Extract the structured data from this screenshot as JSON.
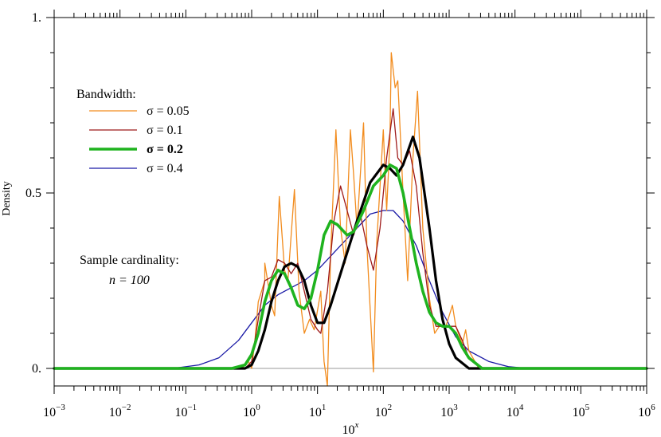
{
  "chart_data": {
    "type": "line",
    "xscale": "log",
    "x_exponent_range": [
      -3,
      6
    ],
    "xlim": [
      0.001,
      1000000
    ],
    "ylim": [
      -0.05,
      1.0
    ],
    "xlabel_base": "10",
    "xlabel_exp": "x",
    "ylabel": "Density",
    "yticks": [
      {
        "value": 0.0,
        "label": "0."
      },
      {
        "value": 0.5,
        "label": "0.5"
      },
      {
        "value": 1.0,
        "label": "1."
      }
    ],
    "xticks": [
      {
        "exp": -3,
        "base": "10",
        "sup": "−3"
      },
      {
        "exp": -2,
        "base": "10",
        "sup": "−2"
      },
      {
        "exp": -1,
        "base": "10",
        "sup": "−1"
      },
      {
        "exp": 0,
        "base": "10",
        "sup": "0"
      },
      {
        "exp": 1,
        "base": "10",
        "sup": "1"
      },
      {
        "exp": 2,
        "base": "10",
        "sup": "2"
      },
      {
        "exp": 3,
        "base": "10",
        "sup": "3"
      },
      {
        "exp": 4,
        "base": "10",
        "sup": "4"
      },
      {
        "exp": 5,
        "base": "10",
        "sup": "5"
      },
      {
        "exp": 6,
        "base": "10",
        "sup": "6"
      }
    ],
    "legend": {
      "title": "Bandwidth:",
      "entries": [
        {
          "label": "σ = 0.05",
          "color": "#f28c1e",
          "width": 1.3,
          "bold": false
        },
        {
          "label": "σ = 0.1",
          "color": "#9e1a1a",
          "width": 1.3,
          "bold": false
        },
        {
          "label": "σ = 0.2",
          "color": "#1fb31f",
          "width": 3.6,
          "bold": true
        },
        {
          "label": "σ = 0.4",
          "color": "#1a1aa6",
          "width": 1.3,
          "bold": false
        }
      ]
    },
    "annotation": {
      "line1": "Sample cardinality:",
      "line2": "n = 100"
    },
    "series": [
      {
        "color": "#000000",
        "width": 3.2,
        "points": [
          [
            -3.0,
            0.0
          ],
          [
            -0.1,
            0.0
          ],
          [
            0.0,
            0.01
          ],
          [
            0.1,
            0.05
          ],
          [
            0.2,
            0.11
          ],
          [
            0.3,
            0.19
          ],
          [
            0.4,
            0.25
          ],
          [
            0.5,
            0.29
          ],
          [
            0.6,
            0.3
          ],
          [
            0.7,
            0.29
          ],
          [
            0.8,
            0.25
          ],
          [
            0.9,
            0.18
          ],
          [
            1.0,
            0.13
          ],
          [
            1.1,
            0.13
          ],
          [
            1.2,
            0.18
          ],
          [
            1.4,
            0.3
          ],
          [
            1.6,
            0.42
          ],
          [
            1.8,
            0.53
          ],
          [
            2.0,
            0.58
          ],
          [
            2.1,
            0.57
          ],
          [
            2.2,
            0.55
          ],
          [
            2.3,
            0.58
          ],
          [
            2.45,
            0.66
          ],
          [
            2.55,
            0.6
          ],
          [
            2.7,
            0.4
          ],
          [
            2.8,
            0.25
          ],
          [
            2.9,
            0.14
          ],
          [
            3.0,
            0.07
          ],
          [
            3.1,
            0.03
          ],
          [
            3.3,
            0.0
          ],
          [
            6.0,
            0.0
          ]
        ]
      },
      {
        "color": "#f28c1e",
        "width": 1.3,
        "points": [
          [
            -3.0,
            0.0
          ],
          [
            -0.15,
            0.0
          ],
          [
            -0.05,
            0.02
          ],
          [
            0.0,
            0.0
          ],
          [
            0.05,
            0.08
          ],
          [
            0.1,
            0.19
          ],
          [
            0.2,
            0.25
          ],
          [
            0.2,
            0.3
          ],
          [
            0.25,
            0.24
          ],
          [
            0.3,
            0.18
          ],
          [
            0.35,
            0.15
          ],
          [
            0.42,
            0.49
          ],
          [
            0.5,
            0.28
          ],
          [
            0.55,
            0.25
          ],
          [
            0.65,
            0.51
          ],
          [
            0.72,
            0.22
          ],
          [
            0.8,
            0.1
          ],
          [
            0.88,
            0.14
          ],
          [
            0.95,
            0.11
          ],
          [
            1.05,
            0.22
          ],
          [
            1.1,
            0.02
          ],
          [
            1.15,
            -0.05
          ],
          [
            1.2,
            0.33
          ],
          [
            1.28,
            0.68
          ],
          [
            1.35,
            0.4
          ],
          [
            1.42,
            0.3
          ],
          [
            1.5,
            0.68
          ],
          [
            1.55,
            0.55
          ],
          [
            1.6,
            0.4
          ],
          [
            1.7,
            0.7
          ],
          [
            1.75,
            0.35
          ],
          [
            1.85,
            -0.01
          ],
          [
            1.9,
            0.36
          ],
          [
            2.0,
            0.68
          ],
          [
            2.05,
            0.45
          ],
          [
            2.1,
            0.65
          ],
          [
            2.12,
            0.9
          ],
          [
            2.18,
            0.8
          ],
          [
            2.22,
            0.82
          ],
          [
            2.25,
            0.7
          ],
          [
            2.3,
            0.5
          ],
          [
            2.37,
            0.25
          ],
          [
            2.45,
            0.6
          ],
          [
            2.52,
            0.79
          ],
          [
            2.6,
            0.4
          ],
          [
            2.7,
            0.2
          ],
          [
            2.78,
            0.1
          ],
          [
            2.85,
            0.12
          ],
          [
            2.95,
            0.12
          ],
          [
            3.05,
            0.18
          ],
          [
            3.1,
            0.12
          ],
          [
            3.2,
            0.07
          ],
          [
            3.25,
            0.11
          ],
          [
            3.3,
            0.05
          ],
          [
            3.45,
            0.0
          ],
          [
            6.0,
            0.0
          ]
        ]
      },
      {
        "color": "#9e1a1a",
        "width": 1.3,
        "points": [
          [
            -3.0,
            0.0
          ],
          [
            -0.1,
            0.0
          ],
          [
            0.0,
            0.02
          ],
          [
            0.1,
            0.14
          ],
          [
            0.2,
            0.25
          ],
          [
            0.3,
            0.26
          ],
          [
            0.4,
            0.31
          ],
          [
            0.5,
            0.3
          ],
          [
            0.6,
            0.27
          ],
          [
            0.7,
            0.3
          ],
          [
            0.8,
            0.22
          ],
          [
            0.9,
            0.14
          ],
          [
            1.0,
            0.11
          ],
          [
            1.05,
            0.1
          ],
          [
            1.15,
            0.22
          ],
          [
            1.25,
            0.42
          ],
          [
            1.35,
            0.52
          ],
          [
            1.45,
            0.45
          ],
          [
            1.55,
            0.38
          ],
          [
            1.65,
            0.44
          ],
          [
            1.75,
            0.35
          ],
          [
            1.85,
            0.28
          ],
          [
            1.95,
            0.4
          ],
          [
            2.05,
            0.6
          ],
          [
            2.15,
            0.74
          ],
          [
            2.22,
            0.6
          ],
          [
            2.3,
            0.58
          ],
          [
            2.4,
            0.62
          ],
          [
            2.5,
            0.52
          ],
          [
            2.6,
            0.33
          ],
          [
            2.7,
            0.18
          ],
          [
            2.8,
            0.12
          ],
          [
            2.9,
            0.12
          ],
          [
            3.0,
            0.12
          ],
          [
            3.1,
            0.12
          ],
          [
            3.2,
            0.08
          ],
          [
            3.3,
            0.03
          ],
          [
            3.5,
            0.0
          ],
          [
            6.0,
            0.0
          ]
        ]
      },
      {
        "color": "#1fb31f",
        "width": 3.6,
        "points": [
          [
            -3.0,
            0.0
          ],
          [
            -0.3,
            0.0
          ],
          [
            -0.1,
            0.01
          ],
          [
            0.0,
            0.04
          ],
          [
            0.1,
            0.1
          ],
          [
            0.2,
            0.19
          ],
          [
            0.3,
            0.25
          ],
          [
            0.4,
            0.28
          ],
          [
            0.5,
            0.27
          ],
          [
            0.6,
            0.23
          ],
          [
            0.7,
            0.18
          ],
          [
            0.8,
            0.17
          ],
          [
            0.9,
            0.2
          ],
          [
            1.0,
            0.28
          ],
          [
            1.1,
            0.38
          ],
          [
            1.2,
            0.42
          ],
          [
            1.3,
            0.41
          ],
          [
            1.45,
            0.38
          ],
          [
            1.55,
            0.39
          ],
          [
            1.7,
            0.45
          ],
          [
            1.85,
            0.52
          ],
          [
            2.0,
            0.55
          ],
          [
            2.1,
            0.58
          ],
          [
            2.2,
            0.57
          ],
          [
            2.3,
            0.5
          ],
          [
            2.4,
            0.4
          ],
          [
            2.5,
            0.3
          ],
          [
            2.6,
            0.22
          ],
          [
            2.7,
            0.16
          ],
          [
            2.8,
            0.13
          ],
          [
            2.9,
            0.12
          ],
          [
            3.0,
            0.12
          ],
          [
            3.1,
            0.1
          ],
          [
            3.2,
            0.06
          ],
          [
            3.3,
            0.03
          ],
          [
            3.5,
            0.0
          ],
          [
            6.0,
            0.0
          ]
        ]
      },
      {
        "color": "#1a1aa6",
        "width": 1.3,
        "points": [
          [
            -3.0,
            0.0
          ],
          [
            -1.2,
            0.0
          ],
          [
            -0.8,
            0.01
          ],
          [
            -0.5,
            0.03
          ],
          [
            -0.2,
            0.08
          ],
          [
            0.0,
            0.13
          ],
          [
            0.2,
            0.18
          ],
          [
            0.4,
            0.21
          ],
          [
            0.6,
            0.23
          ],
          [
            0.8,
            0.25
          ],
          [
            1.0,
            0.28
          ],
          [
            1.2,
            0.32
          ],
          [
            1.4,
            0.36
          ],
          [
            1.6,
            0.4
          ],
          [
            1.8,
            0.44
          ],
          [
            2.0,
            0.45
          ],
          [
            2.15,
            0.45
          ],
          [
            2.3,
            0.42
          ],
          [
            2.5,
            0.35
          ],
          [
            2.7,
            0.25
          ],
          [
            2.9,
            0.16
          ],
          [
            3.1,
            0.09
          ],
          [
            3.3,
            0.05
          ],
          [
            3.6,
            0.02
          ],
          [
            3.9,
            0.005
          ],
          [
            4.2,
            0.0
          ],
          [
            6.0,
            0.0
          ]
        ]
      }
    ]
  }
}
